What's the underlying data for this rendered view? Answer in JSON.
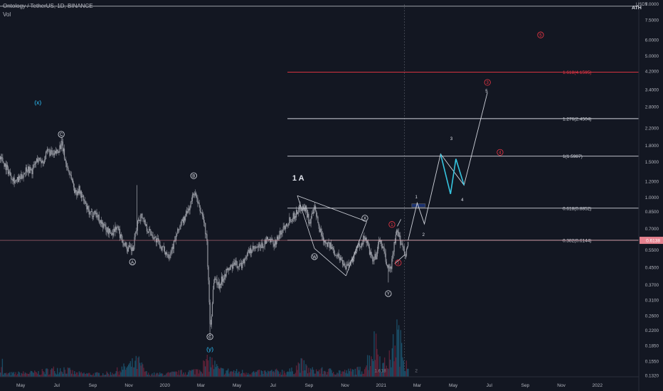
{
  "header": {
    "symbol_title": "Ontology / TetherUS, 1D, BINANCE",
    "volume_label": "Vol",
    "ath_label": "ATH",
    "currency_label": "USDT"
  },
  "colors": {
    "background": "#131722",
    "candle": "#9598a1",
    "volume_up": "#1a4a63",
    "volume_down": "#5a2136",
    "fib_line": "#d1d4dc",
    "ext_line": "#f23645",
    "price_line": "#e5828f",
    "projection_white": "#d1d4dc",
    "projection_cyan": "#36c5e0",
    "wave_red": "#f23645",
    "wave_cyan": "#2ec5ff"
  },
  "chart_data": {
    "type": "candlestick",
    "title": "Ontology / TetherUS, 1D, BINANCE",
    "y_scale": "log",
    "ylim": [
      0.13,
      9.0
    ],
    "y_ticks": [
      9.0,
      7.5,
      6.0,
      5.0,
      4.2,
      3.4,
      2.8,
      2.2,
      1.8,
      1.5,
      1.2,
      1.0,
      0.85,
      0.7,
      0.55,
      0.45,
      0.37,
      0.31,
      0.26,
      0.22,
      0.185,
      0.155,
      0.132
    ],
    "y_tick_labels": [
      "9.0000",
      "7.5000",
      "6.0000",
      "5.0000",
      "4.2000",
      "3.4000",
      "2.8000",
      "2.2000",
      "1.8000",
      "1.5000",
      "1.2000",
      "1.0000",
      "0.8500",
      "0.7000",
      "0.5500",
      "0.4500",
      "0.3700",
      "0.3100",
      "0.2600",
      "0.2200",
      "0.1850",
      "0.1550",
      "0.1320"
    ],
    "x_ticks": [
      "May",
      "Jul",
      "Sep",
      "Nov",
      "2020",
      "Mar",
      "May",
      "Jul",
      "Sep",
      "Nov",
      "2021",
      "Mar",
      "May",
      "Jul",
      "Sep",
      "Nov",
      "2022"
    ],
    "x_tick_months": [
      0,
      2,
      4,
      6,
      8,
      10,
      12,
      14,
      16,
      18,
      20,
      22,
      24,
      26,
      28,
      30,
      32
    ],
    "x_range_months": [
      -1.15,
      34.3
    ],
    "last_price": 0.6138,
    "last_price_label": "0.6138",
    "price_path": [
      [
        -1.15,
        1.6
      ],
      [
        -0.9,
        1.45
      ],
      [
        -0.6,
        1.3
      ],
      [
        -0.3,
        1.2
      ],
      [
        0.0,
        1.25
      ],
      [
        0.3,
        1.4
      ],
      [
        0.6,
        1.35
      ],
      [
        0.9,
        1.55
      ],
      [
        1.2,
        1.5
      ],
      [
        1.5,
        1.7
      ],
      [
        1.8,
        1.6
      ],
      [
        2.1,
        1.75
      ],
      [
        2.25,
        1.85
      ],
      [
        2.5,
        1.45
      ],
      [
        2.8,
        1.25
      ],
      [
        3.0,
        1.05
      ],
      [
        3.2,
        1.1
      ],
      [
        3.5,
        0.95
      ],
      [
        3.8,
        0.82
      ],
      [
        4.1,
        0.85
      ],
      [
        4.4,
        0.76
      ],
      [
        4.7,
        0.7
      ],
      [
        5.0,
        0.66
      ],
      [
        5.3,
        0.72
      ],
      [
        5.6,
        0.62
      ],
      [
        5.9,
        0.56
      ],
      [
        6.2,
        0.55
      ],
      [
        6.5,
        0.78
      ],
      [
        6.7,
        0.82
      ],
      [
        7.0,
        0.7
      ],
      [
        7.3,
        0.65
      ],
      [
        7.6,
        0.6
      ],
      [
        7.9,
        0.55
      ],
      [
        8.2,
        0.52
      ],
      [
        8.5,
        0.6
      ],
      [
        8.8,
        0.72
      ],
      [
        9.1,
        0.8
      ],
      [
        9.4,
        0.92
      ],
      [
        9.6,
        1.08
      ],
      [
        9.85,
        0.9
      ],
      [
        10.1,
        0.8
      ],
      [
        10.3,
        0.62
      ],
      [
        10.5,
        0.22
      ],
      [
        10.7,
        0.4
      ],
      [
        11.0,
        0.37
      ],
      [
        11.3,
        0.42
      ],
      [
        11.6,
        0.45
      ],
      [
        11.9,
        0.47
      ],
      [
        12.2,
        0.46
      ],
      [
        12.5,
        0.52
      ],
      [
        12.8,
        0.55
      ],
      [
        13.1,
        0.56
      ],
      [
        13.4,
        0.58
      ],
      [
        13.7,
        0.62
      ],
      [
        14.0,
        0.59
      ],
      [
        14.3,
        0.64
      ],
      [
        14.6,
        0.72
      ],
      [
        14.9,
        0.78
      ],
      [
        15.2,
        0.82
      ],
      [
        15.5,
        0.9
      ],
      [
        15.8,
        0.88
      ],
      [
        16.0,
        0.75
      ],
      [
        16.3,
        0.88
      ],
      [
        16.5,
        0.72
      ],
      [
        16.8,
        0.62
      ],
      [
        17.1,
        0.58
      ],
      [
        17.4,
        0.54
      ],
      [
        17.7,
        0.5
      ],
      [
        18.0,
        0.46
      ],
      [
        18.3,
        0.48
      ],
      [
        18.6,
        0.55
      ],
      [
        18.9,
        0.6
      ],
      [
        19.1,
        0.64
      ],
      [
        19.3,
        0.55
      ],
      [
        19.5,
        0.48
      ],
      [
        19.7,
        0.52
      ],
      [
        19.9,
        0.62
      ],
      [
        20.1,
        0.55
      ],
      [
        20.3,
        0.46
      ],
      [
        20.5,
        0.44
      ],
      [
        20.7,
        0.58
      ],
      [
        20.85,
        0.68
      ],
      [
        21.0,
        0.62
      ],
      [
        21.2,
        0.57
      ],
      [
        21.35,
        0.52
      ],
      [
        21.5,
        0.6138
      ]
    ],
    "volume_path": [
      [
        -1.0,
        0.04
      ],
      [
        0.0,
        0.05
      ],
      [
        1.0,
        0.06
      ],
      [
        2.25,
        0.12
      ],
      [
        3.0,
        0.05
      ],
      [
        4.0,
        0.04
      ],
      [
        5.0,
        0.05
      ],
      [
        6.5,
        0.2
      ],
      [
        7.0,
        0.04
      ],
      [
        8.0,
        0.04
      ],
      [
        9.6,
        0.08
      ],
      [
        10.5,
        0.22
      ],
      [
        11.0,
        0.09
      ],
      [
        12.0,
        0.07
      ],
      [
        13.0,
        0.06
      ],
      [
        14.0,
        0.07
      ],
      [
        15.0,
        0.08
      ],
      [
        15.5,
        0.18
      ],
      [
        16.0,
        0.09
      ],
      [
        17.0,
        0.08
      ],
      [
        18.0,
        0.07
      ],
      [
        19.0,
        0.1
      ],
      [
        19.7,
        0.5
      ],
      [
        20.0,
        0.14
      ],
      [
        20.5,
        0.25
      ],
      [
        20.85,
        0.6
      ],
      [
        21.2,
        0.3
      ],
      [
        21.5,
        0.2
      ]
    ],
    "levels": [
      {
        "price": 4.1595,
        "label": "1.618(4.1595)",
        "color": "#f23645",
        "x0": 14.8
      },
      {
        "price": 2.4504,
        "label": "1.276(2.4504)",
        "color": "#d1d4dc",
        "x0": 14.8
      },
      {
        "price": 1.5987,
        "label": "1(1.5987)",
        "color": "#d1d4dc",
        "x0": 14.8
      },
      {
        "price": 0.8852,
        "label": "0.618(0.8852)",
        "color": "#d1d4dc",
        "x0": 14.8
      },
      {
        "price": 0.6144,
        "label": "0.382(0.6144)",
        "color": "#d1d4dc",
        "x0": 14.8
      }
    ],
    "wave_labels": [
      {
        "text": "(x)",
        "t": 0.95,
        "p": 2.95,
        "style": "cyan-plain"
      },
      {
        "text": "C",
        "t": 2.25,
        "p": 2.05,
        "style": "white-circle"
      },
      {
        "text": "A",
        "t": 6.2,
        "p": 0.48,
        "style": "white-circle"
      },
      {
        "text": "B",
        "t": 9.6,
        "p": 1.28,
        "style": "white-circle"
      },
      {
        "text": "C",
        "t": 10.5,
        "p": 0.205,
        "style": "white-circle"
      },
      {
        "text": "(y)",
        "t": 10.5,
        "p": 0.178,
        "style": "cyan-plain"
      },
      {
        "text": "W",
        "t": 16.3,
        "p": 0.51,
        "style": "white-circle"
      },
      {
        "text": "X",
        "t": 19.1,
        "p": 0.79,
        "style": "white-circle"
      },
      {
        "text": "Y",
        "t": 20.4,
        "p": 0.335,
        "style": "white-circle"
      },
      {
        "text": "1",
        "t": 20.6,
        "p": 0.735,
        "style": "red-circle"
      },
      {
        "text": "2",
        "t": 20.95,
        "p": 0.475,
        "style": "red-circle"
      },
      {
        "text": "3",
        "t": 25.9,
        "p": 3.7,
        "style": "red-circle"
      },
      {
        "text": "4",
        "t": 26.6,
        "p": 1.67,
        "style": "red-circle"
      },
      {
        "text": "5",
        "t": 28.85,
        "p": 6.35,
        "style": "red-circle"
      },
      {
        "text": "1 A",
        "t": 15.4,
        "p": 1.25,
        "style": "white-big"
      },
      {
        "text": "1",
        "t": 21.95,
        "p": 1.005,
        "style": "white-small"
      },
      {
        "text": "2",
        "t": 22.35,
        "p": 0.655,
        "style": "white-small"
      },
      {
        "text": "3",
        "t": 23.9,
        "p": 1.95,
        "style": "white-small"
      },
      {
        "text": "4",
        "t": 24.5,
        "p": 0.975,
        "style": "white-small"
      },
      {
        "text": "5",
        "t": 25.85,
        "p": 3.35,
        "style": "white-small"
      },
      {
        "text": "1.618",
        "t": 19.95,
        "p": 0.139,
        "style": "grey-small"
      },
      {
        "text": "2",
        "t": 21.95,
        "p": 0.139,
        "style": "grey-small"
      }
    ],
    "projection_white": [
      [
        21.5,
        0.6144
      ],
      [
        22.0,
        0.94
      ],
      [
        22.4,
        0.74
      ],
      [
        23.3,
        1.64
      ],
      [
        24.6,
        1.15
      ],
      [
        25.9,
        3.3
      ]
    ],
    "projection_cyan": [
      [
        23.3,
        1.64
      ],
      [
        23.85,
        1.04
      ],
      [
        24.15,
        1.55
      ],
      [
        24.6,
        1.15
      ]
    ],
    "channel_lines": [
      [
        [
          15.35,
          1.02
        ],
        [
          19.2,
          0.76
        ]
      ],
      [
        [
          16.3,
          0.56
        ],
        [
          18.05,
          0.41
        ]
      ],
      [
        [
          15.35,
          1.02
        ],
        [
          16.3,
          0.56
        ]
      ],
      [
        [
          19.2,
          0.76
        ],
        [
          18.05,
          0.41
        ]
      ],
      [
        [
          20.75,
          0.47
        ],
        [
          21.3,
          0.52
        ]
      ],
      [
        [
          20.9,
          0.72
        ],
        [
          21.1,
          0.78
        ]
      ]
    ],
    "highlight_box": {
      "t0": 21.7,
      "t1": 22.45,
      "p0": 0.895,
      "p1": 0.93
    },
    "session_line_month": 21.3,
    "top_line_price": 8.8
  }
}
